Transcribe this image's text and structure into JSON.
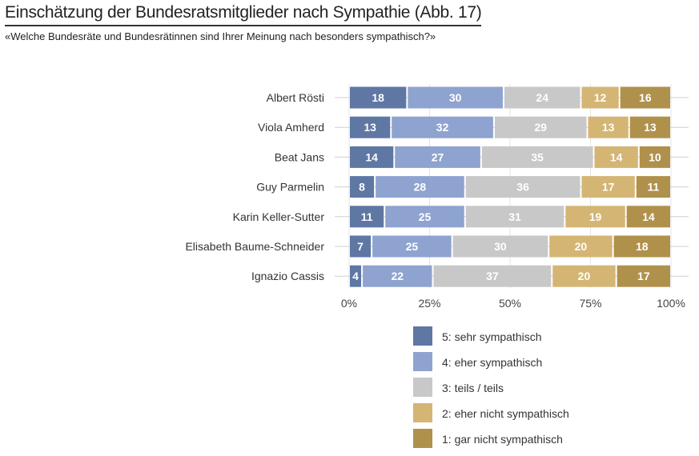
{
  "chart_data": {
    "type": "bar",
    "stacked": true,
    "orientation": "horizontal",
    "title": "Einschätzung der Bundesratsmitglieder nach Sympathie  (Abb. 17)",
    "subtitle": "«Welche Bundesräte und Bundesrätinnen sind Ihrer Meinung nach besonders sympathisch?»",
    "categories": [
      "Albert Rösti",
      "Viola Amherd",
      "Beat Jans",
      "Guy Parmelin",
      "Karin Keller-Sutter",
      "Elisabeth Baume-Schneider",
      "Ignazio Cassis"
    ],
    "series": [
      {
        "name": "5: sehr sympathisch",
        "color": "#5f77a3",
        "values": [
          18,
          13,
          14,
          8,
          11,
          7,
          4
        ]
      },
      {
        "name": "4: eher sympathisch",
        "color": "#8ea3cf",
        "values": [
          30,
          32,
          27,
          28,
          25,
          25,
          22
        ]
      },
      {
        "name": "3: teils / teils",
        "color": "#c8c8c8",
        "values": [
          24,
          29,
          35,
          36,
          31,
          30,
          37
        ]
      },
      {
        "name": "2: eher nicht sympathisch",
        "color": "#d4b574",
        "values": [
          12,
          13,
          14,
          17,
          19,
          20,
          20
        ]
      },
      {
        "name": "1: gar nicht sympathisch",
        "color": "#b0914c",
        "values": [
          16,
          13,
          10,
          11,
          14,
          18,
          17
        ]
      }
    ],
    "xlim": [
      0,
      100
    ],
    "xticks": [
      "0%",
      "25%",
      "50%",
      "75%",
      "100%"
    ],
    "legend": "bottom",
    "grid": true
  }
}
